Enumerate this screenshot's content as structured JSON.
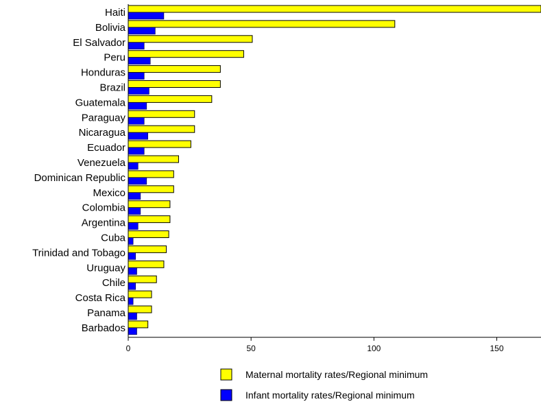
{
  "chart_data": {
    "type": "bar",
    "orientation": "horizontal",
    "categories": [
      "Haiti",
      "Bolivia",
      "El Salvador",
      "Peru",
      "Honduras",
      "Brazil",
      "Guatemala",
      "Paraguay",
      "Nicaragua",
      "Ecuador",
      "Venezuela",
      "Dominican Republic",
      "Mexico",
      "Colombia",
      "Argentina",
      "Cuba",
      "Trinidad and Tobago",
      "Uruguay",
      "Chile",
      "Costa Rica",
      "Panama",
      "Barbados"
    ],
    "series": [
      {
        "name": "Maternal mortality rates/Regional minimum",
        "color": "#ffff00",
        "values": [
          168,
          108.5,
          50.5,
          47,
          37.5,
          37.5,
          34,
          27,
          27,
          25.5,
          20.5,
          18.5,
          18.5,
          17,
          17,
          16.5,
          15.5,
          14.5,
          11.5,
          9.5,
          9.5,
          8
        ]
      },
      {
        "name": "Infant mortality rates/Regional minimum",
        "color": "#0000ff",
        "values": [
          14.5,
          11,
          6.5,
          9,
          6.5,
          8.5,
          7.5,
          6.5,
          8,
          6.5,
          4,
          7.5,
          5,
          5,
          4,
          2,
          3,
          3.5,
          3,
          2,
          3.5,
          3.5
        ]
      }
    ],
    "xlim": [
      0,
      168
    ],
    "xticks": [
      0,
      50,
      100,
      150
    ],
    "grid": false,
    "legend_position": "bottom"
  }
}
